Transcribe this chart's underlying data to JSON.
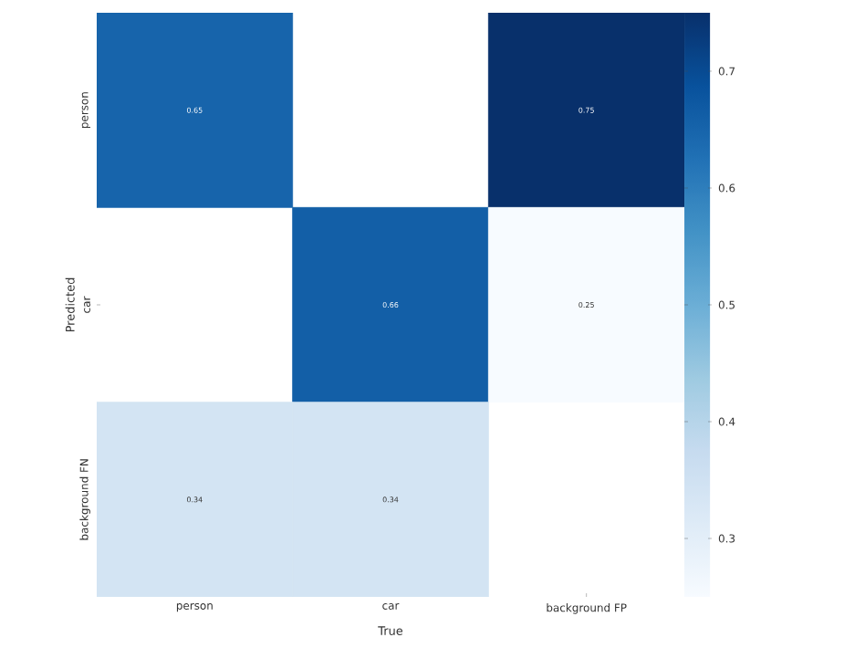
{
  "chart_data": {
    "type": "heatmap",
    "xlabel": "True",
    "ylabel": "Predicted",
    "categories": [
      "person",
      "car",
      "background FP"
    ],
    "y_categories": [
      "person",
      "car",
      "background FN"
    ],
    "cells": [
      [
        0.65,
        null,
        0.75
      ],
      [
        null,
        0.66,
        0.25
      ],
      [
        0.34,
        0.34,
        null
      ]
    ],
    "clim": [
      0.25,
      0.75
    ],
    "cticks": [
      0.3,
      0.4,
      0.5,
      0.6,
      0.7
    ],
    "data_labels": true
  }
}
